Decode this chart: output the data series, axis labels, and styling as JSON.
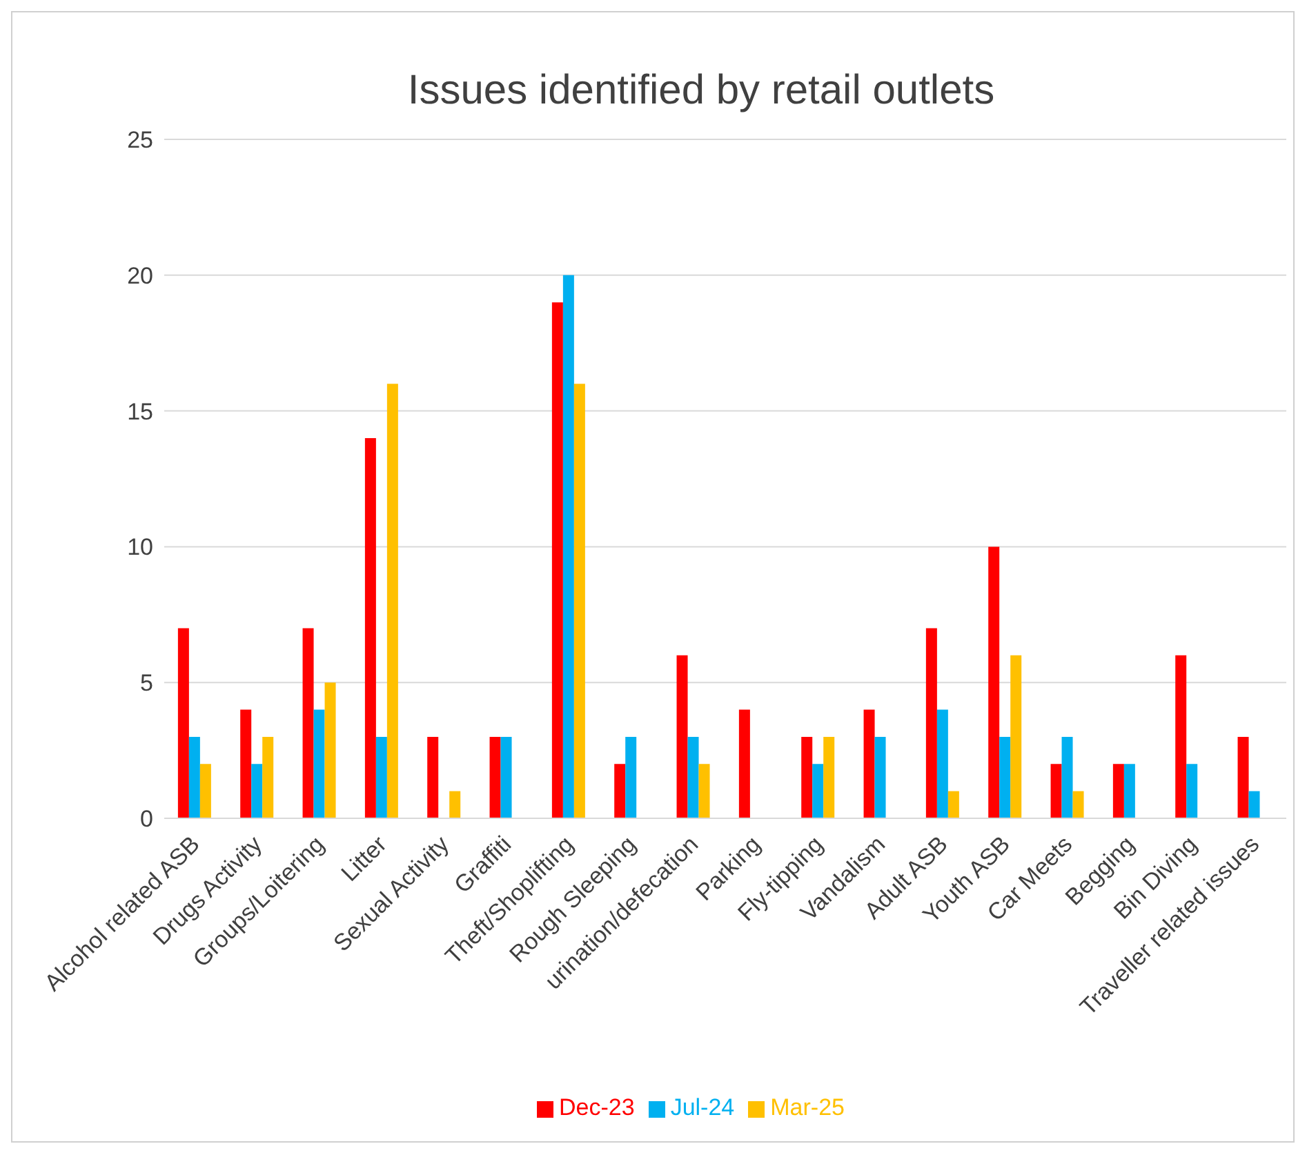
{
  "chart_data": {
    "type": "bar",
    "title": "Issues identified by retail outlets",
    "categories": [
      "Alcohol related ASB",
      "Drugs Activity",
      "Groups/Loitering",
      "Litter",
      "Sexual Activity",
      "Graffiti",
      "Theft/Shoplifting",
      "Rough Sleeping",
      "urination/defecation",
      "Parking",
      "Fly-tipping",
      "Vandalism",
      "Adult ASB",
      "Youth ASB",
      "Car Meets",
      "Begging",
      "Bin Diving",
      "Traveller related issues"
    ],
    "series": [
      {
        "name": "Dec-23",
        "color": "#ff0000",
        "values": [
          7,
          4,
          7,
          14,
          3,
          3,
          19,
          2,
          6,
          4,
          3,
          4,
          7,
          10,
          2,
          2,
          6,
          3
        ]
      },
      {
        "name": "Jul-24",
        "color": "#00b0f0",
        "values": [
          3,
          2,
          4,
          3,
          0,
          3,
          20,
          3,
          3,
          0,
          2,
          3,
          4,
          3,
          3,
          2,
          2,
          1
        ]
      },
      {
        "name": "Mar-25",
        "color": "#ffc000",
        "values": [
          2,
          3,
          5,
          16,
          1,
          0,
          16,
          0,
          2,
          0,
          3,
          0,
          1,
          6,
          1,
          0,
          0,
          0
        ]
      }
    ],
    "ylim": [
      0,
      25
    ],
    "yticks": [
      0,
      5,
      10,
      15,
      20,
      25
    ],
    "grid": "y",
    "legend": "bottom"
  }
}
